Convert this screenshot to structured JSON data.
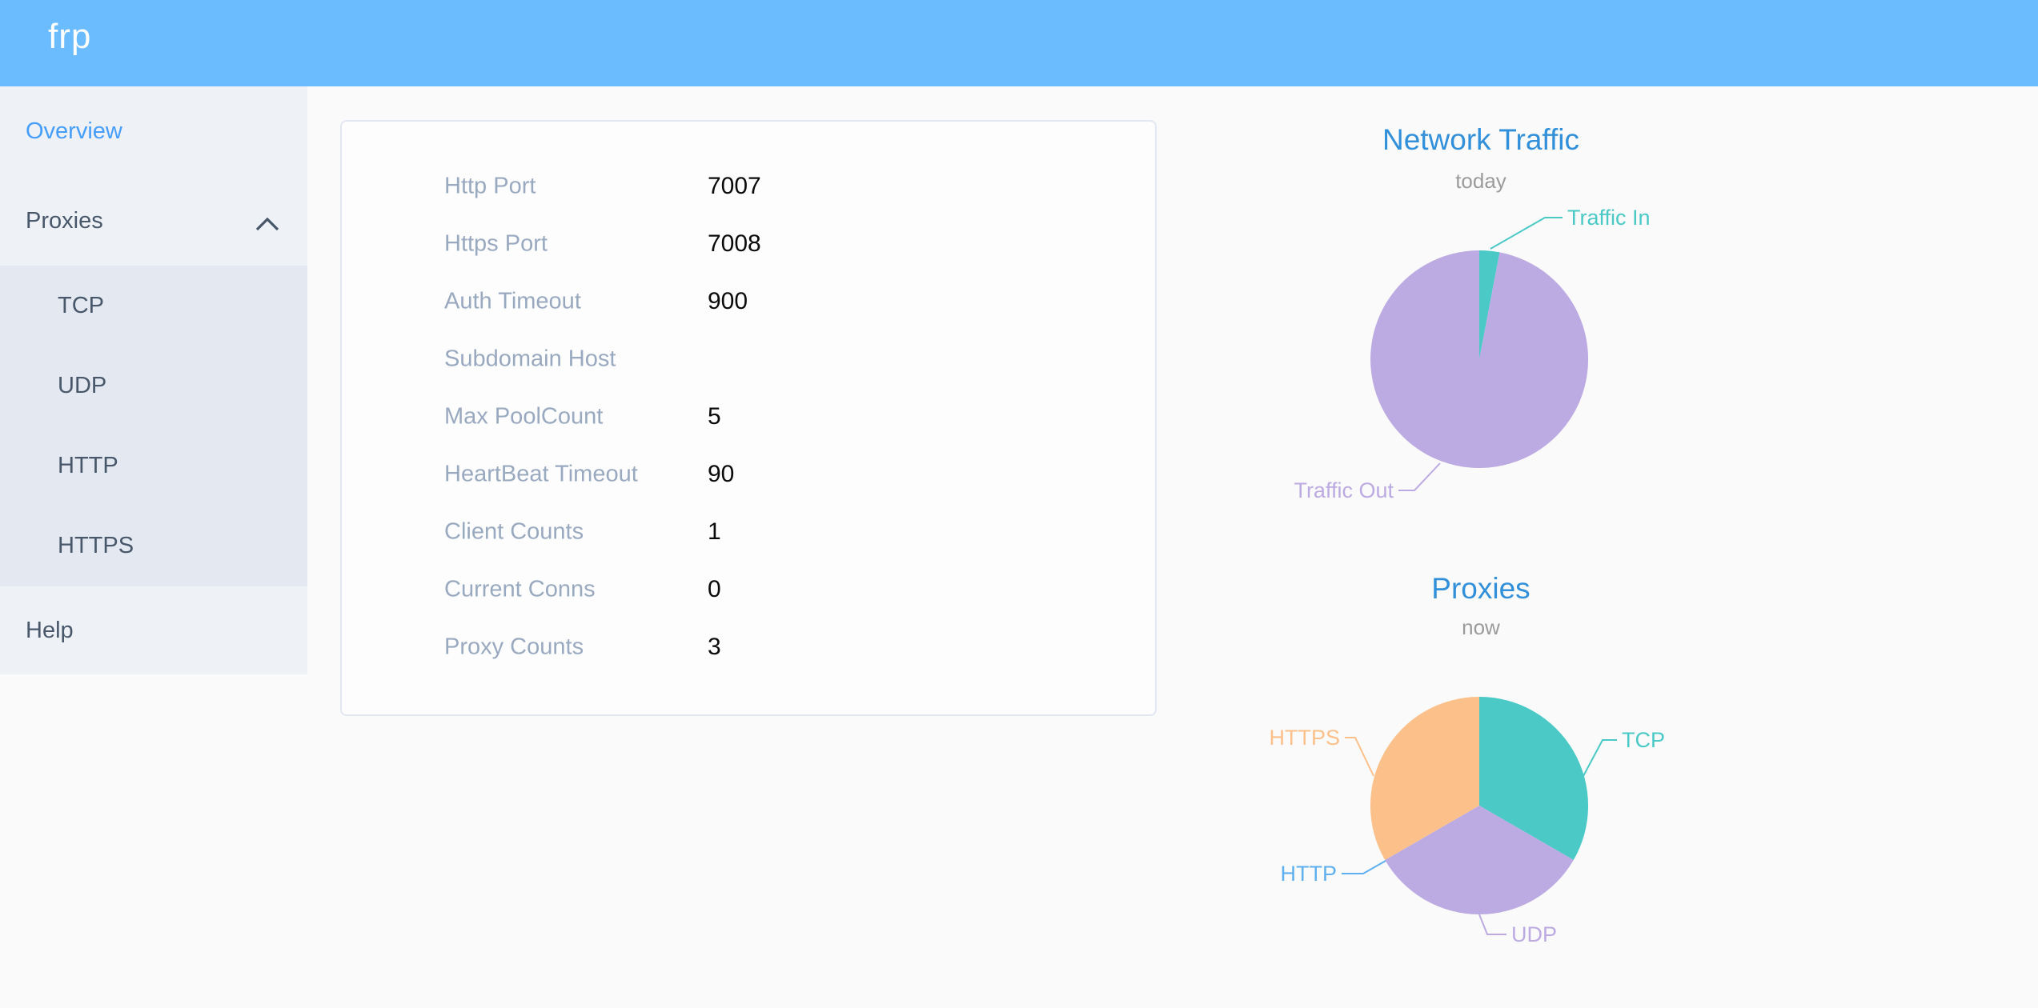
{
  "header": {
    "logo": "frp"
  },
  "sidebar": {
    "overview": "Overview",
    "proxies": "Proxies",
    "submenu": [
      "TCP",
      "UDP",
      "HTTP",
      "HTTPS"
    ],
    "help": "Help"
  },
  "overview_card": {
    "rows": [
      {
        "label": "Http Port",
        "value": "7007"
      },
      {
        "label": "Https Port",
        "value": "7008"
      },
      {
        "label": "Auth Timeout",
        "value": "900"
      },
      {
        "label": "Subdomain Host",
        "value": ""
      },
      {
        "label": "Max PoolCount",
        "value": "5"
      },
      {
        "label": "HeartBeat Timeout",
        "value": "90"
      },
      {
        "label": "Client Counts",
        "value": "1"
      },
      {
        "label": "Current Conns",
        "value": "0"
      },
      {
        "label": "Proxy Counts",
        "value": "3"
      }
    ]
  },
  "chart_data": [
    {
      "type": "pie",
      "title": "Network Traffic",
      "subtitle": "today",
      "legend_position": "callout-labels",
      "slices": [
        {
          "name": "Traffic In",
          "value": 3,
          "color": "#4ac9c6"
        },
        {
          "name": "Traffic Out",
          "value": 97,
          "color": "#bcaae2"
        }
      ]
    },
    {
      "type": "pie",
      "title": "Proxies",
      "subtitle": "now",
      "legend_position": "callout-labels",
      "slices": [
        {
          "name": "TCP",
          "value": 1,
          "color": "#4ac9c6"
        },
        {
          "name": "UDP",
          "value": 1,
          "color": "#bcaae2"
        },
        {
          "name": "HTTP",
          "value": 0,
          "color": "#5fb0ee"
        },
        {
          "name": "HTTPS",
          "value": 1,
          "color": "#fcc08a"
        }
      ]
    }
  ],
  "colors": {
    "header_bg": "#6abcff",
    "sidebar_bg": "#eef1f6",
    "submenu_bg": "#e3e8f1",
    "sidebar_text": "#48576a",
    "active_link": "#459ef9",
    "card_label": "#99a9bf",
    "card_value": "#0a0a0a",
    "chart_title": "#3190d9",
    "chart_subtitle": "#9b9b9b"
  }
}
